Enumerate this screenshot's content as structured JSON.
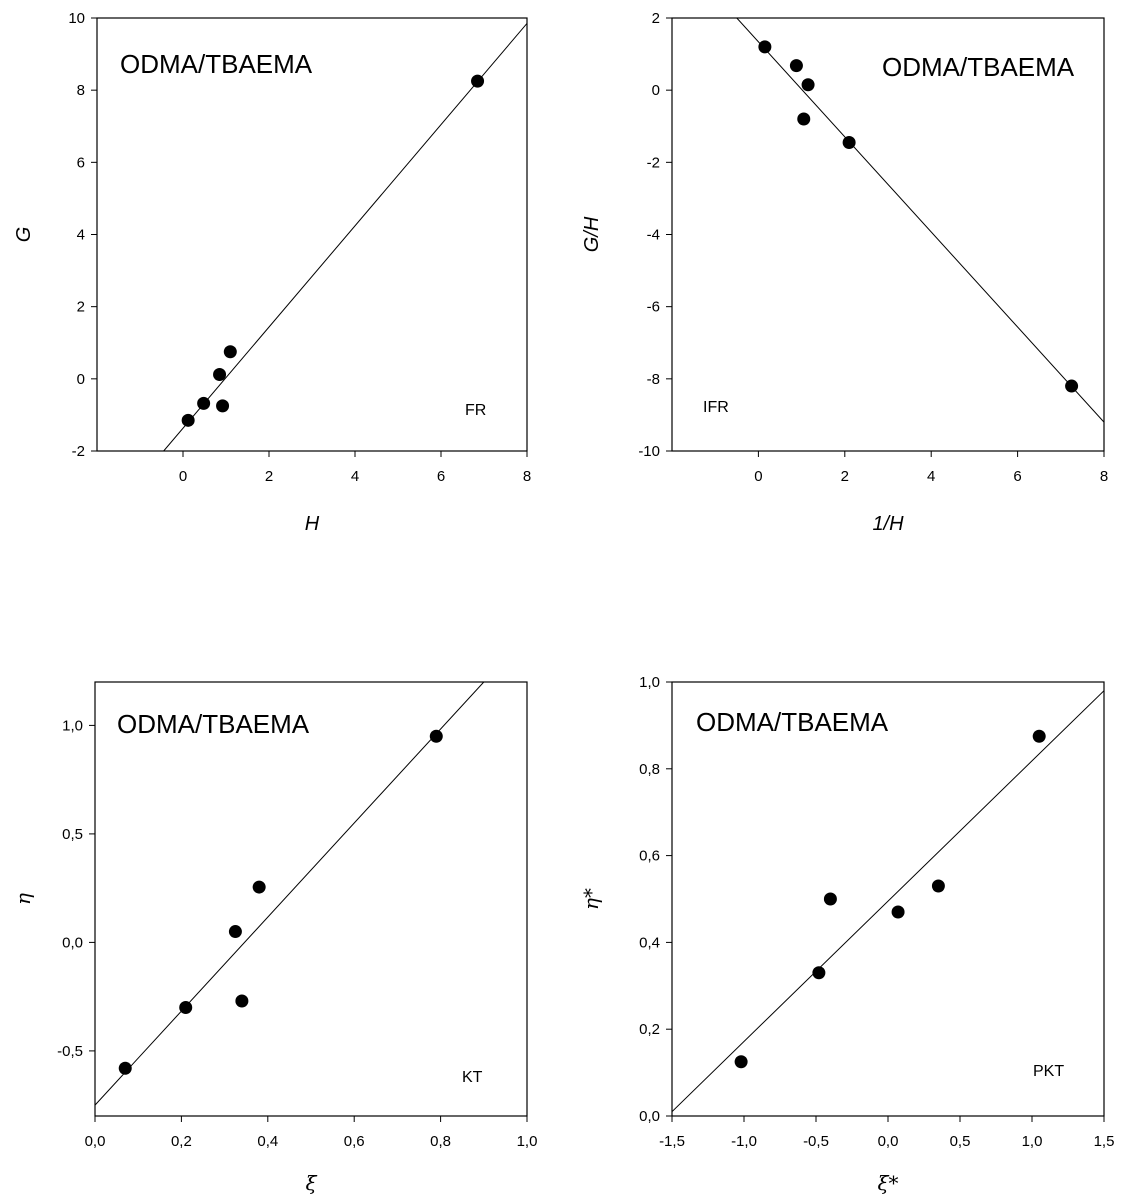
{
  "chart_data": [
    {
      "type": "scatter",
      "title": "ODMA/TBAEMA",
      "tag": "FR",
      "xlabel": "H",
      "ylabel": "G",
      "xlim": [
        -2,
        8
      ],
      "ylim": [
        -2,
        10
      ],
      "xticks": [
        0,
        2,
        4,
        6,
        8
      ],
      "yticks": [
        -2,
        0,
        2,
        4,
        6,
        8,
        10
      ],
      "xtick_labels": [
        "0",
        "2",
        "4",
        "6",
        "8"
      ],
      "ytick_labels": [
        "-2",
        "0",
        "2",
        "4",
        "6",
        "8",
        "10"
      ],
      "points": [
        {
          "x": 0.12,
          "y": -1.15
        },
        {
          "x": 0.48,
          "y": -0.68
        },
        {
          "x": 0.85,
          "y": 0.12
        },
        {
          "x": 0.92,
          "y": -0.75
        },
        {
          "x": 1.1,
          "y": 0.75
        },
        {
          "x": 6.85,
          "y": 8.25
        }
      ],
      "fit_line": [
        {
          "x": -0.45,
          "y": -2
        },
        {
          "x": 8,
          "y": 9.85
        }
      ]
    },
    {
      "type": "scatter",
      "title": "ODMA/TBAEMA",
      "tag": "IFR",
      "xlabel": "1/H",
      "ylabel": "G/H",
      "xlim": [
        -2,
        8
      ],
      "ylim": [
        -10,
        2
      ],
      "xticks": [
        0,
        2,
        4,
        6,
        8
      ],
      "yticks": [
        -10,
        -8,
        -6,
        -4,
        -2,
        0,
        2
      ],
      "xtick_labels": [
        "0",
        "2",
        "4",
        "6",
        "8"
      ],
      "ytick_labels": [
        "-10",
        "-8",
        "-6",
        "-4",
        "-2",
        "0",
        "2"
      ],
      "points": [
        {
          "x": 0.15,
          "y": 1.2
        },
        {
          "x": 0.88,
          "y": 0.68
        },
        {
          "x": 1.15,
          "y": 0.15
        },
        {
          "x": 1.05,
          "y": -0.8
        },
        {
          "x": 2.1,
          "y": -1.45
        },
        {
          "x": 7.25,
          "y": -8.2
        }
      ],
      "fit_line": [
        {
          "x": -0.5,
          "y": 2
        },
        {
          "x": 8,
          "y": -9.2
        }
      ]
    },
    {
      "type": "scatter",
      "title": "ODMA/TBAEMA",
      "tag": "KT",
      "xlabel": "ξ",
      "ylabel": "η",
      "xlim": [
        0,
        1
      ],
      "ylim": [
        -0.8,
        1.2
      ],
      "xticks": [
        0,
        0.2,
        0.4,
        0.6,
        0.8,
        1.0
      ],
      "yticks": [
        -0.5,
        0,
        0.5,
        1.0
      ],
      "xtick_labels": [
        "0,0",
        "0,2",
        "0,4",
        "0,6",
        "0,8",
        "1,0"
      ],
      "ytick_labels": [
        "-0,5",
        "0,0",
        "0,5",
        "1,0"
      ],
      "points": [
        {
          "x": 0.07,
          "y": -0.58
        },
        {
          "x": 0.21,
          "y": -0.3
        },
        {
          "x": 0.325,
          "y": 0.05
        },
        {
          "x": 0.34,
          "y": -0.27
        },
        {
          "x": 0.38,
          "y": 0.255
        },
        {
          "x": 0.79,
          "y": 0.95
        }
      ],
      "fit_line": [
        {
          "x": 0,
          "y": -0.75
        },
        {
          "x": 0.9,
          "y": 1.2
        }
      ]
    },
    {
      "type": "scatter",
      "title": "ODMA/TBAEMA",
      "tag": "PKT",
      "xlabel": "ξ*",
      "ylabel": "η*",
      "xlim": [
        -1.5,
        1.5
      ],
      "ylim": [
        0,
        1.0
      ],
      "xticks": [
        -1.5,
        -1.0,
        -0.5,
        0,
        0.5,
        1.0,
        1.5
      ],
      "yticks": [
        0,
        0.2,
        0.4,
        0.6,
        0.8,
        1.0
      ],
      "xtick_labels": [
        "-1,5",
        "-1,0",
        "-0,5",
        "0,0",
        "0,5",
        "1,0",
        "1,5"
      ],
      "ytick_labels": [
        "0,0",
        "0,2",
        "0,4",
        "0,6",
        "0,8",
        "1,0"
      ],
      "points": [
        {
          "x": -1.02,
          "y": 0.125
        },
        {
          "x": -0.48,
          "y": 0.33
        },
        {
          "x": -0.4,
          "y": 0.5
        },
        {
          "x": 0.07,
          "y": 0.47
        },
        {
          "x": 0.35,
          "y": 0.53
        },
        {
          "x": 1.05,
          "y": 0.875
        }
      ],
      "fit_line": [
        {
          "x": -1.5,
          "y": 0.01
        },
        {
          "x": 1.5,
          "y": 0.98
        }
      ]
    }
  ]
}
